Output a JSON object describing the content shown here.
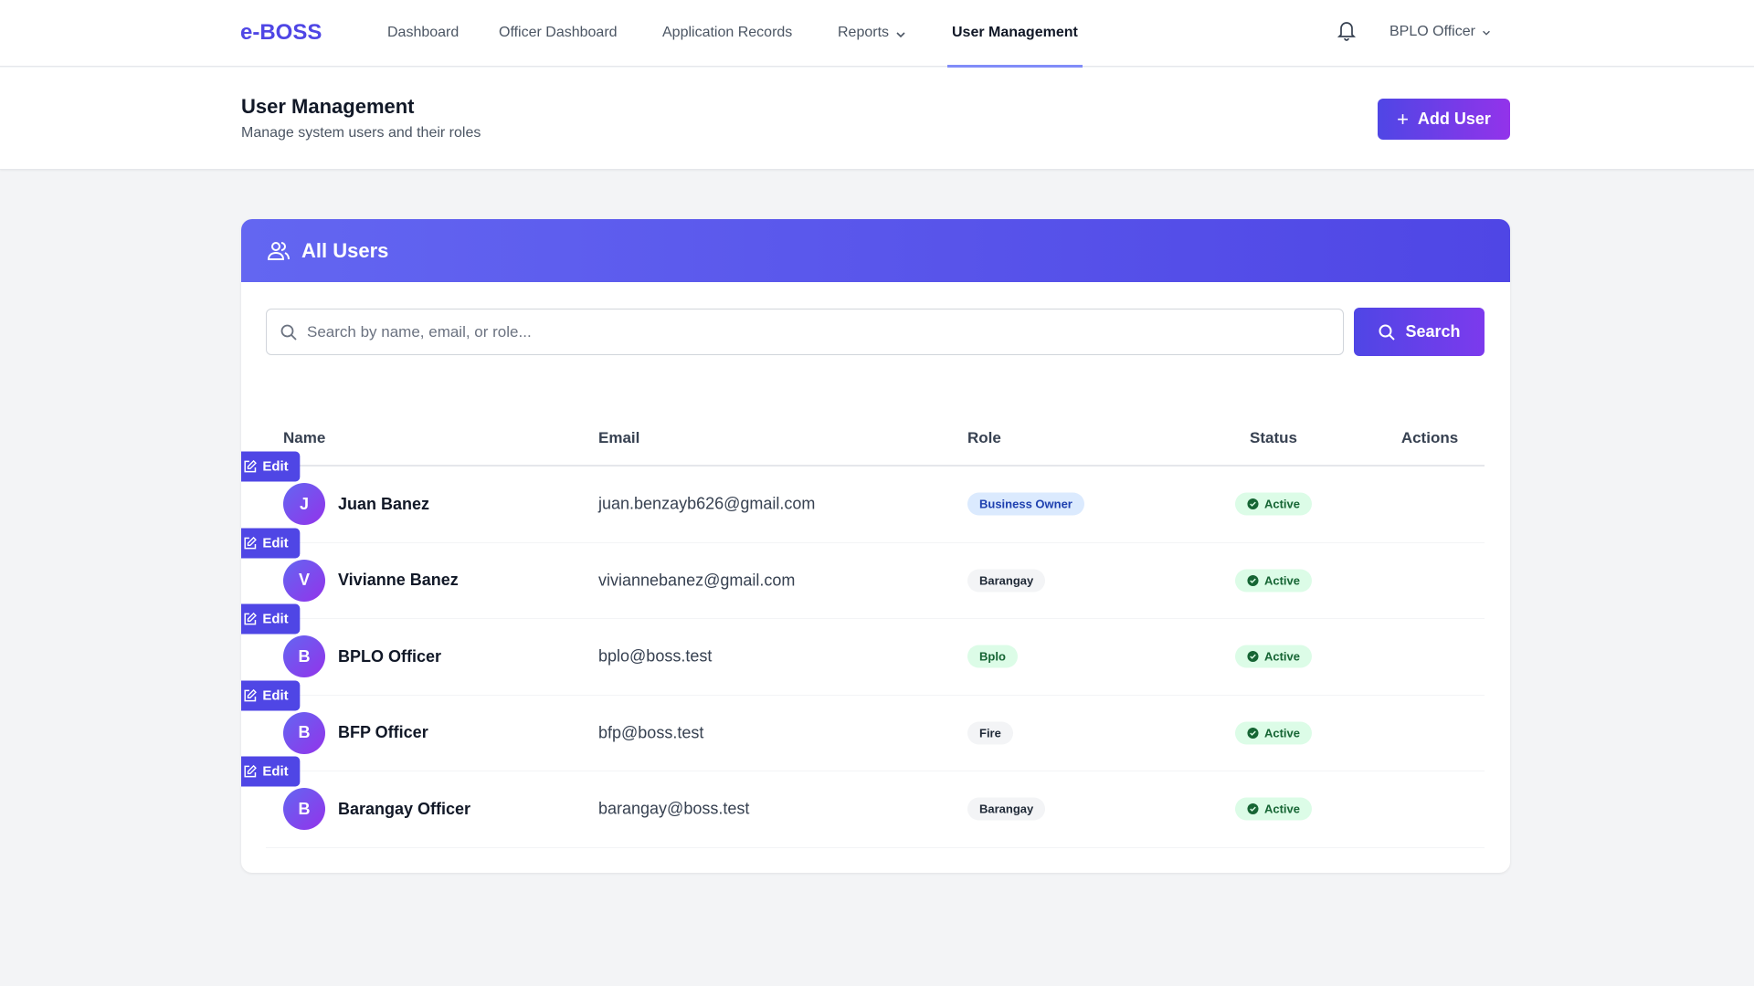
{
  "nav": {
    "logo": "e-BOSS",
    "items": [
      "Dashboard",
      "Officer Dashboard",
      "Application Records",
      "Reports",
      "User Management"
    ],
    "active": "User Management",
    "user": "BPLO Officer"
  },
  "header": {
    "title": "User Management",
    "subtitle": "Manage system users and their roles",
    "add_label": "Add User"
  },
  "card": {
    "title": "All Users",
    "search_placeholder": "Search by name, email, or role...",
    "search_value": "",
    "search_label": "Search"
  },
  "table": {
    "columns": [
      "Name",
      "Email",
      "Role",
      "Status",
      "Actions"
    ],
    "rows": [
      {
        "initial": "J",
        "name": "Juan Banez",
        "email": "juan.benzayb626@gmail.com",
        "role": "Business Owner",
        "role_color": "blue",
        "status": "Active",
        "action": "Edit"
      },
      {
        "initial": "V",
        "name": "Vivianne Banez",
        "email": "viviannebanez@gmail.com",
        "role": "Barangay",
        "role_color": "gray",
        "status": "Active",
        "action": "Edit"
      },
      {
        "initial": "B",
        "name": "BPLO Officer",
        "email": "bplo@boss.test",
        "role": "Bplo",
        "role_color": "green",
        "status": "Active",
        "action": "Edit"
      },
      {
        "initial": "B",
        "name": "BFP Officer",
        "email": "bfp@boss.test",
        "role": "Fire",
        "role_color": "gray",
        "status": "Active",
        "action": "Edit"
      },
      {
        "initial": "B",
        "name": "Barangay Officer",
        "email": "barangay@boss.test",
        "role": "Barangay",
        "role_color": "gray",
        "status": "Active",
        "action": "Edit"
      }
    ]
  },
  "colors": {
    "accent": "#4f46e5",
    "gradient_end": "#9333ea",
    "active_bg": "#dcfce7",
    "active_text": "#166534"
  }
}
